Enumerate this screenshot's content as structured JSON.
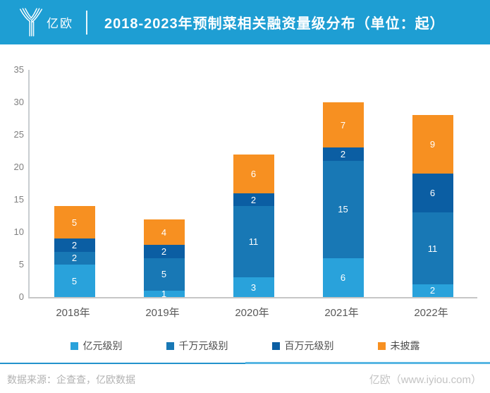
{
  "header": {
    "logo_text": "亿欧",
    "title": "2018-2023年预制菜相关融资量级分布（单位：起）",
    "brand_blue": "#1E9ED3"
  },
  "chart_data": {
    "type": "bar",
    "stacked": true,
    "title": "2018-2023年预制菜相关融资量级分布（单位：起）",
    "categories": [
      "2018年",
      "2019年",
      "2020年",
      "2021年",
      "2022年"
    ],
    "series": [
      {
        "name": "亿元级别",
        "color": "#29A2DB",
        "values": [
          5,
          1,
          3,
          6,
          2
        ]
      },
      {
        "name": "千万元级别",
        "color": "#1878B5",
        "values": [
          2,
          5,
          11,
          15,
          11
        ]
      },
      {
        "name": "百万元级别",
        "color": "#0B5EA3",
        "values": [
          2,
          2,
          2,
          2,
          6
        ]
      },
      {
        "name": "未披露",
        "color": "#F79021",
        "values": [
          5,
          4,
          6,
          7,
          9
        ]
      }
    ],
    "totals": [
      14,
      12,
      22,
      30,
      28
    ],
    "ylim": [
      0,
      35
    ],
    "yticks": [
      0,
      5,
      10,
      15,
      20,
      25,
      30,
      35
    ],
    "grid": false,
    "legend_position": "bottom"
  },
  "footer": {
    "source": "数据来源：企查查，亿欧数据",
    "brand": "亿欧（www.iyiou.com）"
  }
}
